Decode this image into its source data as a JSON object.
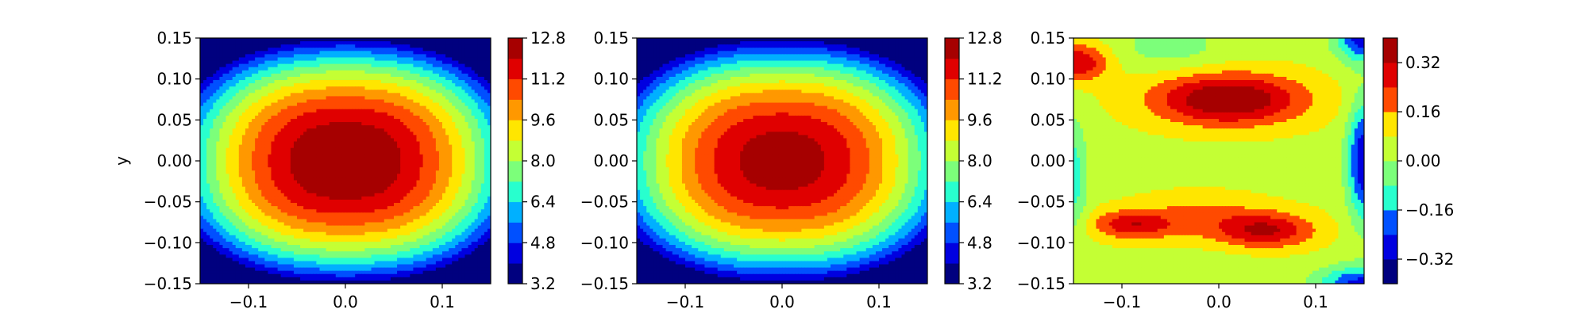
{
  "figure": {
    "colors": {
      "jet_levels": [
        "#00007f",
        "#0000e0",
        "#0050ff",
        "#00b0ff",
        "#28ffce",
        "#7cff7a",
        "#c4ff34",
        "#ffe600",
        "#ff9800",
        "#ff4a00",
        "#e00000",
        "#a60000"
      ]
    }
  },
  "chart_data": [
    {
      "type": "heatmap",
      "subtype": "filled-contour",
      "xlabel": "",
      "ylabel": "y",
      "xlim": [
        -0.15,
        0.15
      ],
      "ylim": [
        -0.15,
        0.15
      ],
      "x_ticks": [
        "−0.1",
        "0.0",
        "0.1"
      ],
      "y_ticks": [
        "0.15",
        "0.10",
        "0.05",
        "0.00",
        "−0.05",
        "−0.10",
        "−0.15"
      ],
      "colorbar": {
        "range": [
          3.2,
          12.8
        ],
        "ticks": [
          "12.8",
          "11.2",
          "9.6",
          "8.0",
          "6.4",
          "4.8",
          "3.2"
        ],
        "levels": [
          3.2,
          4.0,
          4.8,
          5.6,
          6.4,
          7.2,
          8.0,
          8.8,
          9.6,
          10.4,
          11.2,
          12.0,
          12.8
        ]
      },
      "field": {
        "model": "peak",
        "center": [
          0.0,
          0.0
        ],
        "peak": 12.9,
        "min": 3.0,
        "x_extent": 0.19,
        "y_extent": 0.155,
        "shape": "superellipse"
      }
    },
    {
      "type": "heatmap",
      "subtype": "filled-contour",
      "xlabel": "",
      "ylabel": "",
      "xlim": [
        -0.15,
        0.15
      ],
      "ylim": [
        -0.15,
        0.15
      ],
      "x_ticks": [
        "−0.1",
        "0.0",
        "0.1"
      ],
      "y_ticks": [
        "0.15",
        "0.10",
        "0.05",
        "0.00",
        "−0.05",
        "−0.10",
        "−0.15"
      ],
      "colorbar": {
        "range": [
          3.2,
          12.8
        ],
        "ticks": [
          "12.8",
          "11.2",
          "9.6",
          "8.0",
          "6.4",
          "4.8",
          "3.2"
        ],
        "levels": [
          3.2,
          4.0,
          4.8,
          5.6,
          6.4,
          7.2,
          8.0,
          8.8,
          9.6,
          10.4,
          11.2,
          12.0,
          12.8
        ]
      },
      "field": {
        "model": "peak",
        "center": [
          0.0,
          0.0
        ],
        "peak": 12.5,
        "min": 3.0,
        "x_extent": 0.19,
        "y_extent": 0.155,
        "shape": "superellipse"
      }
    },
    {
      "type": "heatmap",
      "subtype": "filled-contour",
      "xlabel": "",
      "ylabel": "",
      "xlim": [
        -0.15,
        0.15
      ],
      "ylim": [
        -0.15,
        0.15
      ],
      "x_ticks": [
        "−0.1",
        "0.0",
        "0.1"
      ],
      "y_ticks": [
        "0.15",
        "0.10",
        "0.05",
        "0.00",
        "−0.05",
        "−0.10",
        "−0.15"
      ],
      "colorbar": {
        "range": [
          -0.4,
          0.4
        ],
        "ticks": [
          "0.32",
          "0.16",
          "0.00",
          "−0.16",
          "−0.32"
        ],
        "levels": [
          -0.4,
          -0.32,
          -0.24,
          -0.16,
          -0.08,
          0.0,
          0.08,
          0.16,
          0.24,
          0.32,
          0.4
        ]
      },
      "field": {
        "model": "difference",
        "base": 0.06,
        "features": [
          {
            "x": 0.01,
            "y": 0.075,
            "amp": 0.36,
            "sx": 0.055,
            "sy": 0.022
          },
          {
            "x": -0.145,
            "y": 0.12,
            "amp": 0.26,
            "sx": 0.022,
            "sy": 0.016
          },
          {
            "x": 0.05,
            "y": -0.085,
            "amp": 0.25,
            "sx": 0.035,
            "sy": 0.015
          },
          {
            "x": -0.09,
            "y": -0.078,
            "amp": 0.22,
            "sx": 0.028,
            "sy": 0.012
          },
          {
            "x": -0.02,
            "y": -0.07,
            "amp": 0.12,
            "sx": 0.05,
            "sy": 0.02
          },
          {
            "x": 0.15,
            "y": 0.0,
            "amp": -0.38,
            "sx": 0.012,
            "sy": 0.05
          },
          {
            "x": 0.15,
            "y": 0.15,
            "amp": -0.36,
            "sx": 0.02,
            "sy": 0.02
          },
          {
            "x": 0.145,
            "y": -0.15,
            "amp": -0.32,
            "sx": 0.03,
            "sy": 0.015
          },
          {
            "x": -0.15,
            "y": -0.02,
            "amp": -0.18,
            "sx": 0.01,
            "sy": 0.05
          },
          {
            "x": -0.05,
            "y": 0.14,
            "amp": -0.1,
            "sx": 0.04,
            "sy": 0.02
          },
          {
            "x": -0.02,
            "y": -0.145,
            "amp": -0.06,
            "sx": 0.04,
            "sy": 0.02
          }
        ]
      }
    }
  ]
}
